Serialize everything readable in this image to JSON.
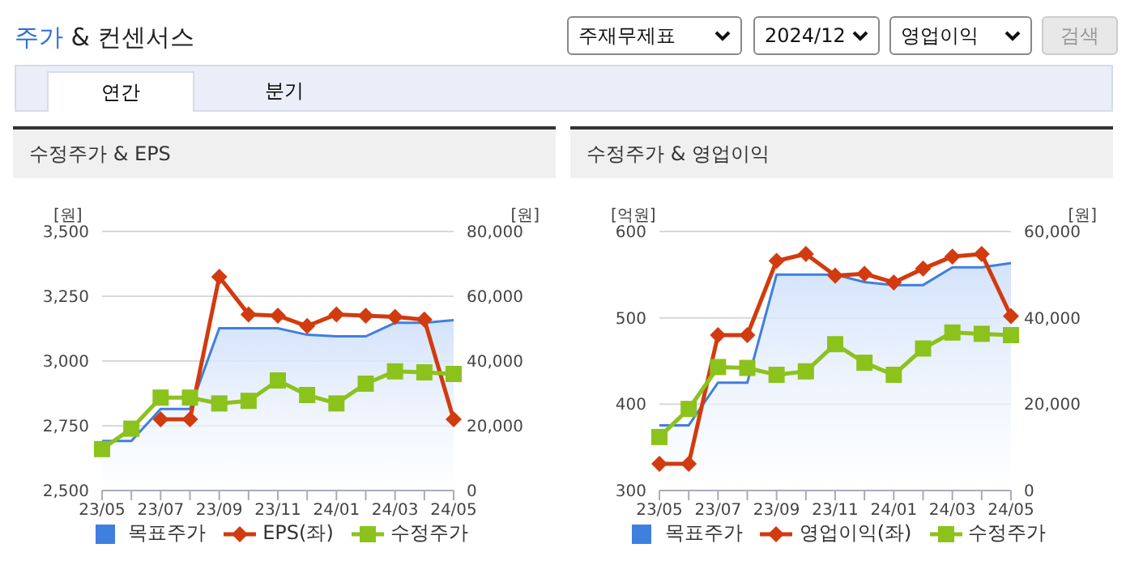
{
  "chart_data": [
    {
      "type": "other",
      "title": "주가 & 컨센서스",
      "annotations": [
        "주재무제표",
        "2024/12",
        "영업이익",
        "검색",
        "연간",
        "분기"
      ]
    },
    {
      "type": "line",
      "title": "수정주가 & EPS",
      "ylabel": "[원]",
      "y2label": "[원]",
      "legend": "bottom",
      "grid": "y",
      "categories": [
        "23/05",
        null,
        "23/07",
        null,
        "23/09",
        null,
        "23/11",
        null,
        "24/01",
        null,
        "24/03",
        null,
        "24/05"
      ],
      "ylim": [
        2500,
        3500
      ],
      "yticks": [
        {
          "value": 2500,
          "label": "2,500"
        },
        {
          "value": 2750,
          "label": "2,750"
        },
        {
          "value": 3000,
          "label": "3,000"
        },
        {
          "value": 3250,
          "label": "3,250"
        },
        {
          "value": 3500,
          "label": "3,500"
        }
      ],
      "y2lim": [
        0,
        80000
      ],
      "y2ticks": [
        0,
        {
          "value": 20000,
          "label": "20,000"
        },
        {
          "value": 40000,
          "label": "40,000"
        },
        {
          "value": 60000,
          "label": "60,000"
        },
        {
          "value": 80000,
          "label": "80,000"
        }
      ],
      "series": [
        {
          "name": "목표주가",
          "type": "area",
          "axis": "y2",
          "color": "#3f7fe0",
          "marker": "none",
          "values": [
            15300,
            15300,
            25200,
            25200,
            50100,
            50100,
            50100,
            48100,
            47600,
            47600,
            51800,
            51800,
            52600
          ]
        },
        {
          "name": "EPS(좌)",
          "type": "line",
          "color": "#d13b0f",
          "marker": "diamond",
          "values": [
            null,
            null,
            2775,
            2775,
            3325,
            3180,
            3175,
            3135,
            3180,
            3175,
            3170,
            3160,
            2775
          ]
        },
        {
          "name": "수정주가",
          "type": "line",
          "axis": "y2",
          "color": "#8cc21c",
          "marker": "square",
          "values": [
            12800,
            19100,
            28700,
            28700,
            26900,
            27700,
            34000,
            29500,
            26900,
            33000,
            36800,
            36500,
            36000
          ]
        }
      ]
    },
    {
      "type": "line",
      "title": "수정주가 & 영업이익",
      "ylabel": "[억원]",
      "y2label": "[원]",
      "legend": "bottom",
      "grid": "y",
      "categories": [
        "23/05",
        null,
        "23/07",
        null,
        "23/09",
        null,
        "23/11",
        null,
        "24/01",
        null,
        "24/03",
        null,
        "24/05"
      ],
      "ylim": [
        300,
        600
      ],
      "yticks": [
        300,
        400,
        500,
        600
      ],
      "y2lim": [
        0,
        60000
      ],
      "y2ticks": [
        0,
        {
          "value": 20000,
          "label": "20,000"
        },
        {
          "value": 40000,
          "label": "40,000"
        },
        {
          "value": 60000,
          "label": "60,000"
        }
      ],
      "series": [
        {
          "name": "목표주가",
          "type": "area",
          "axis": "y2",
          "color": "#3f7fe0",
          "marker": "none",
          "values": [
            15100,
            15100,
            25000,
            25000,
            50000,
            50000,
            50000,
            48300,
            47600,
            47600,
            51700,
            51700,
            52700
          ]
        },
        {
          "name": "영업이익(좌)",
          "type": "line",
          "color": "#d13b0f",
          "marker": "diamond",
          "values": [
            331,
            331,
            480,
            480,
            566,
            574,
            549,
            551,
            541,
            557,
            571,
            574,
            502
          ]
        },
        {
          "name": "수정주가",
          "type": "line",
          "axis": "y2",
          "color": "#8cc21c",
          "marker": "square",
          "values": [
            12400,
            18900,
            28600,
            28400,
            26800,
            27600,
            33900,
            29600,
            26800,
            32900,
            36600,
            36300,
            36000
          ]
        }
      ]
    }
  ]
}
